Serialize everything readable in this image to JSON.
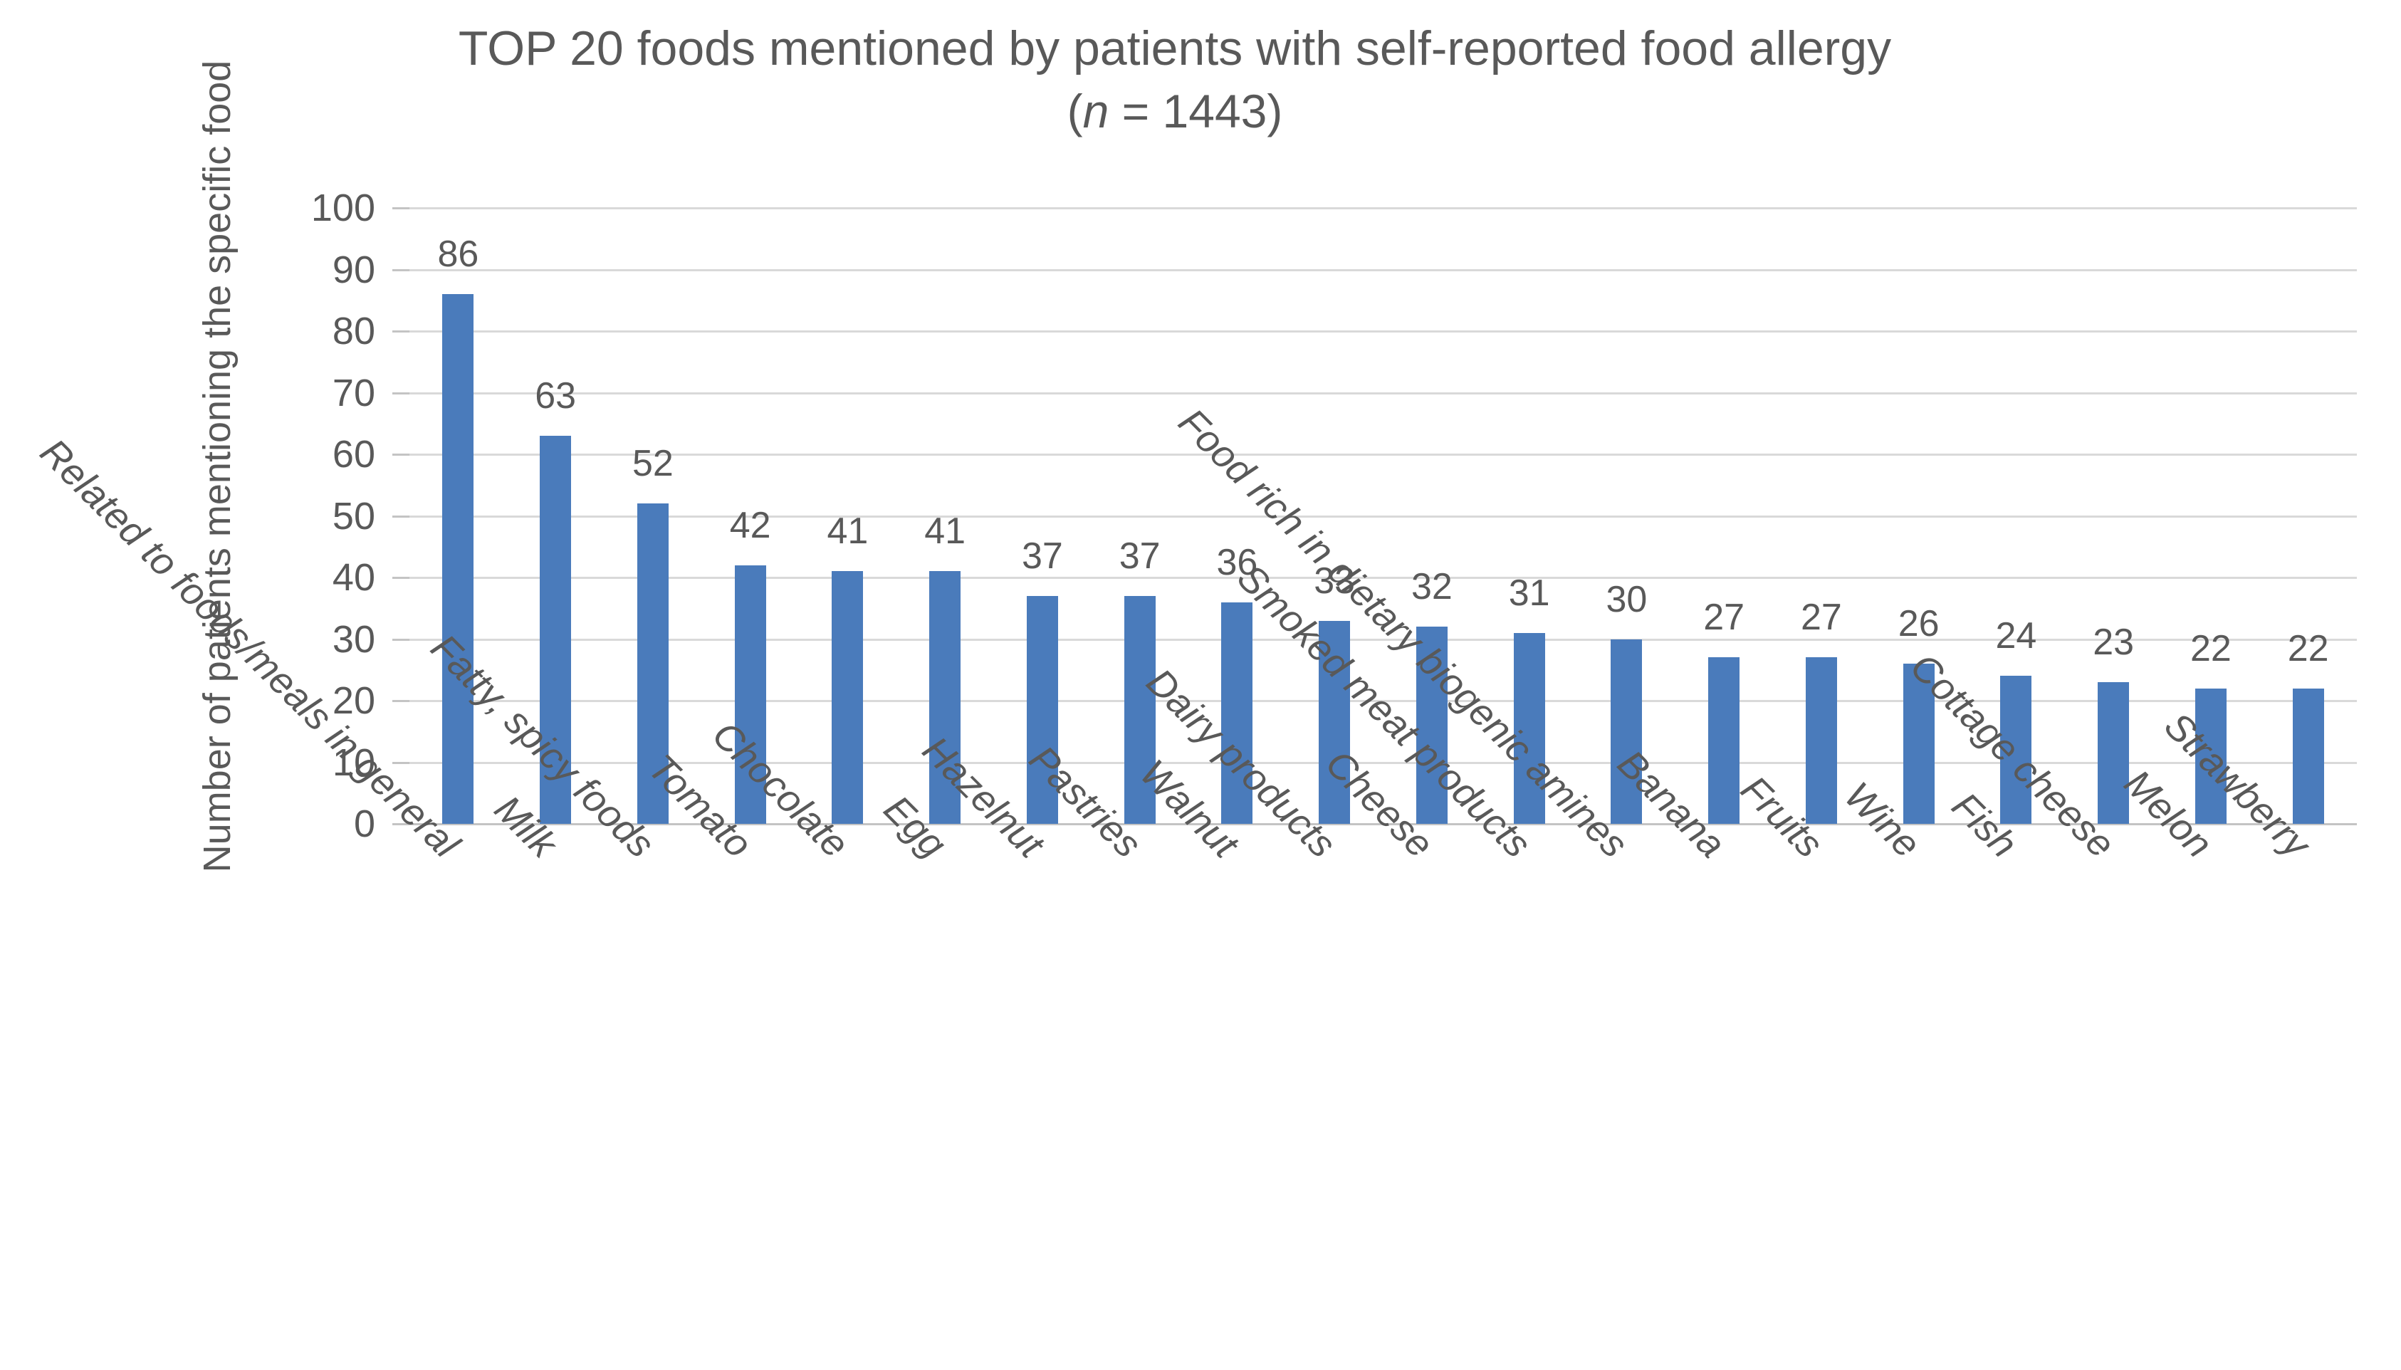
{
  "chart_data": {
    "type": "bar",
    "title": "TOP 20 foods mentioned by patients with self-reported food allergy",
    "subtitle": "(n = 1443)",
    "subtitle_parts": {
      "open": "(",
      "n": "n",
      "rest": " = 1443)"
    },
    "ylabel": "Number of patients mentioning the specific food",
    "xlabel": "",
    "ylim": [
      0,
      100
    ],
    "ytick_interval": 10,
    "ytick_labels": [
      "0",
      "10",
      "20",
      "30",
      "40",
      "50",
      "60",
      "70",
      "80",
      "90",
      "100"
    ],
    "grid": true,
    "legend": false,
    "categories": [
      "Related to foods/meals in general",
      "Milk",
      "Fatty, spicy foods",
      "Tomato",
      "Chocolate",
      "Egg",
      "Hazelnut",
      "Pastries",
      "Walnut",
      "Dairy products",
      "Cheese",
      "Smoked meat products",
      "Food rich in dietary biogenic amines",
      "Banana",
      "Fruits",
      "Wine",
      "Fish",
      "Cottage cheese",
      "Melon",
      "Strawberry"
    ],
    "values": [
      86,
      63,
      52,
      42,
      41,
      41,
      37,
      37,
      36,
      33,
      32,
      31,
      30,
      27,
      27,
      26,
      24,
      23,
      22,
      22
    ],
    "colors": {
      "bar": "#4a7bbb",
      "gridline": "#d9d9d9",
      "axis_line": "#c4c4c4",
      "text": "#595959"
    }
  }
}
